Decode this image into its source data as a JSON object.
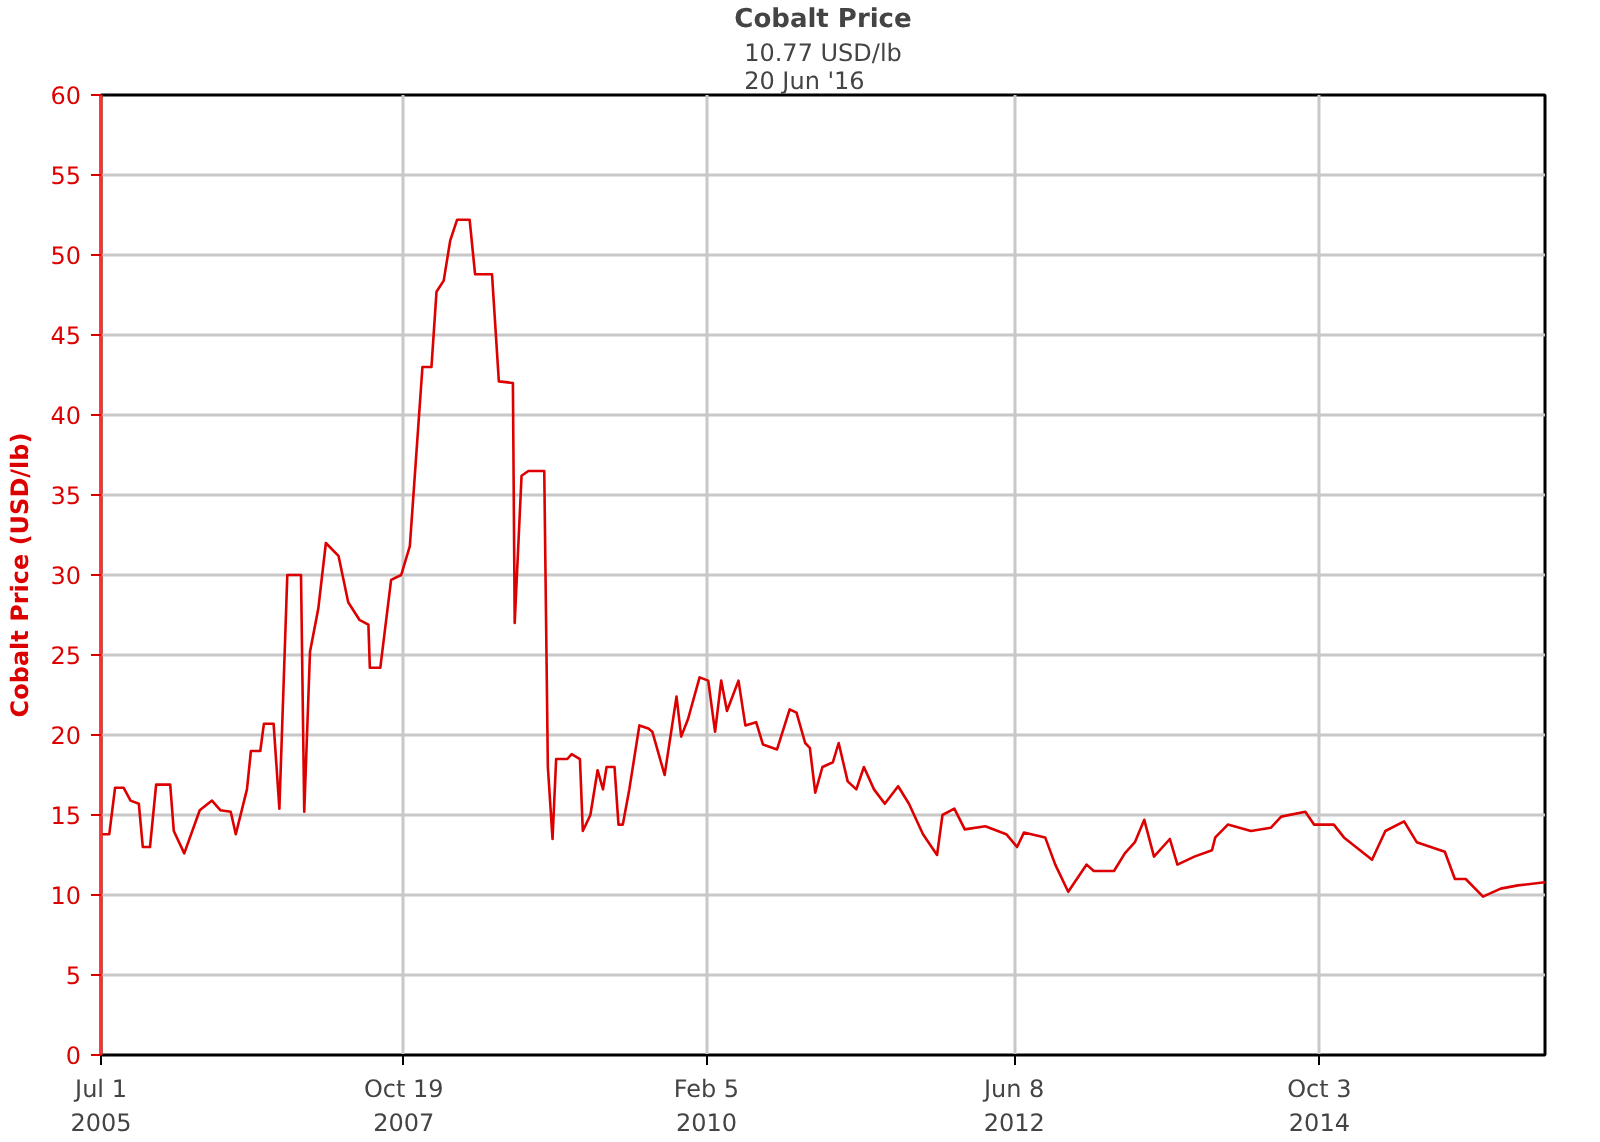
{
  "chart_data": {
    "type": "line",
    "title": "Cobalt Price",
    "subtitle": "10.77 USD/lb\n20 Jun '16",
    "ylabel": "Cobalt Price (USD/lb)",
    "x": [
      "2005-07-01",
      "2005-07-24",
      "2005-08-09",
      "2005-09-02",
      "2005-09-21",
      "2005-10-14",
      "2005-10-25",
      "2005-11-14",
      "2005-12-01",
      "2006-01-09",
      "2006-01-19",
      "2006-02-17",
      "2006-04-01",
      "2006-05-05",
      "2006-05-28",
      "2006-06-26",
      "2006-07-10",
      "2006-08-10",
      "2006-08-21",
      "2006-09-16",
      "2006-09-26",
      "2006-10-23",
      "2006-11-08",
      "2006-11-30",
      "2007-01-07",
      "2007-01-16",
      "2007-02-01",
      "2007-02-24",
      "2007-03-17",
      "2007-04-21",
      "2007-05-18",
      "2007-06-18",
      "2007-07-13",
      "2007-07-17",
      "2007-08-15",
      "2007-09-14",
      "2007-10-12",
      "2007-11-05",
      "2007-12-10",
      "2008-01-04",
      "2008-01-18",
      "2008-02-07",
      "2008-02-25",
      "2008-03-15",
      "2008-04-19",
      "2008-05-04",
      "2008-06-20",
      "2008-07-09",
      "2008-08-17",
      "2008-08-22",
      "2008-09-10",
      "2008-09-29",
      "2008-11-12",
      "2008-11-22",
      "2008-12-05",
      "2008-12-15",
      "2009-01-15",
      "2009-01-27",
      "2009-02-19",
      "2009-02-27",
      "2009-03-20",
      "2009-04-09",
      "2009-04-24",
      "2009-05-04",
      "2009-05-26",
      "2009-06-06",
      "2009-06-18",
      "2009-07-06",
      "2009-08-03",
      "2009-08-28",
      "2009-09-08",
      "2009-10-12",
      "2009-11-14",
      "2009-11-27",
      "2009-12-16",
      "2010-01-17",
      "2010-02-10",
      "2010-03-01",
      "2010-03-18",
      "2010-04-03",
      "2010-05-05",
      "2010-05-24",
      "2010-06-23",
      "2010-07-12",
      "2010-08-20",
      "2010-09-24",
      "2010-10-13",
      "2010-11-06",
      "2010-11-19",
      "2010-12-04",
      "2010-12-24",
      "2011-01-22",
      "2011-02-07",
      "2011-03-04",
      "2011-03-28",
      "2011-04-18",
      "2011-05-16",
      "2011-06-15",
      "2011-07-22",
      "2011-08-21",
      "2011-09-29",
      "2011-11-07",
      "2011-11-22",
      "2011-12-25",
      "2012-01-23",
      "2012-03-20",
      "2012-05-17",
      "2012-06-16",
      "2012-07-05",
      "2012-09-02",
      "2012-09-30",
      "2012-11-05",
      "2012-12-26",
      "2013-01-15",
      "2013-03-12",
      "2013-04-11",
      "2013-05-09",
      "2013-06-04",
      "2013-07-01",
      "2013-08-14",
      "2013-09-04",
      "2013-10-21",
      "2013-12-09",
      "2013-12-18",
      "2014-01-22",
      "2014-03-27",
      "2014-05-21",
      "2014-06-19",
      "2014-08-25",
      "2014-09-18",
      "2014-11-12",
      "2014-12-10",
      "2015-02-26",
      "2015-04-04",
      "2015-05-26",
      "2015-06-30",
      "2015-09-16",
      "2015-10-14",
      "2015-11-13",
      "2015-12-31",
      "2016-02-18",
      "2016-04-06",
      "2016-06-20"
    ],
    "series": [
      {
        "color": "#dd0000",
        "values": [
          13.8,
          13.8,
          16.7,
          16.7,
          15.9,
          15.7,
          13.0,
          13.0,
          16.9,
          16.9,
          14.0,
          12.6,
          15.3,
          15.9,
          15.3,
          15.2,
          13.8,
          16.6,
          19.0,
          19.0,
          20.7,
          20.7,
          15.4,
          30.0,
          30.0,
          15.2,
          25.2,
          27.9,
          32.0,
          31.2,
          28.3,
          27.2,
          26.9,
          24.2,
          24.2,
          29.7,
          30.0,
          31.8,
          43.0,
          43.0,
          47.7,
          48.4,
          50.9,
          52.2,
          52.2,
          48.8,
          48.8,
          42.1,
          42.0,
          27.0,
          36.2,
          36.5,
          36.5,
          18.0,
          13.5,
          18.5,
          18.5,
          18.8,
          18.5,
          14.0,
          15.0,
          17.8,
          16.6,
          18.0,
          18.0,
          14.4,
          14.4,
          16.6,
          20.6,
          20.4,
          20.2,
          17.5,
          22.4,
          19.9,
          21.0,
          23.6,
          23.4,
          20.2,
          23.4,
          21.5,
          23.4,
          20.6,
          20.8,
          19.4,
          19.1,
          21.6,
          21.4,
          19.5,
          19.2,
          16.4,
          18.0,
          18.3,
          19.5,
          17.1,
          16.6,
          18.0,
          16.6,
          15.7,
          16.8,
          15.7,
          13.8,
          12.5,
          15.0,
          15.4,
          14.1,
          14.3,
          13.8,
          13.0,
          13.9,
          13.6,
          11.9,
          10.2,
          11.9,
          11.5,
          11.5,
          12.6,
          13.3,
          14.7,
          12.4,
          13.5,
          11.9,
          12.4,
          12.8,
          13.6,
          14.4,
          14.0,
          14.2,
          14.9,
          15.2,
          14.4,
          14.4,
          13.6,
          12.2,
          14.0,
          14.6,
          13.3,
          12.7,
          11.0,
          11.0,
          9.9,
          10.4,
          10.6,
          10.8
        ]
      }
    ],
    "xlim": [
      "2005-07-01",
      "2016-06-20"
    ],
    "xticks": [
      {
        "value": "2005-07-01",
        "label": "Jul 1\n2005"
      },
      {
        "value": "2007-10-19",
        "label": "Oct 19\n2007"
      },
      {
        "value": "2010-02-05",
        "label": "Feb 5\n2010"
      },
      {
        "value": "2012-06-08",
        "label": "Jun 8\n2012"
      },
      {
        "value": "2014-10-03",
        "label": "Oct 3\n2014"
      }
    ],
    "ylim": [
      0,
      60
    ],
    "yticks": [
      0,
      5,
      10,
      15,
      20,
      25,
      30,
      35,
      40,
      45,
      50,
      55,
      60
    ],
    "grid": true,
    "marker": "none",
    "line_style": "solid"
  }
}
